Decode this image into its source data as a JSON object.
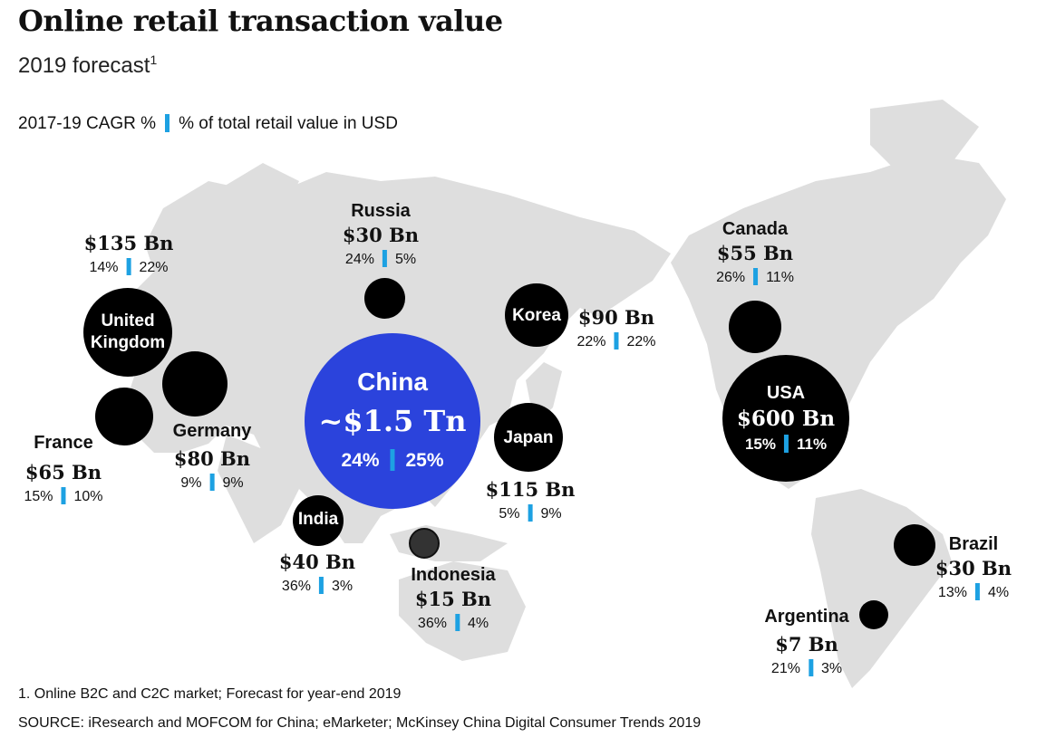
{
  "title": "Online retail transaction value",
  "subtitle": "2019 forecast",
  "subtitle_sup": "1",
  "legend": {
    "left": "2017-19 CAGR %",
    "right": "% of total retail value in USD"
  },
  "accent_color": "#1da1e2",
  "china_color": "#2b43dc",
  "countries": {
    "uk": {
      "name_line1": "United",
      "name_line2": "Kingdom",
      "value": "$135 Bn",
      "cagr": "14%",
      "share": "22%"
    },
    "france": {
      "name": "France",
      "value": "$65 Bn",
      "cagr": "15%",
      "share": "10%"
    },
    "germany": {
      "name": "Germany",
      "value": "$80 Bn",
      "cagr": "9%",
      "share": "9%"
    },
    "russia": {
      "name": "Russia",
      "value": "$30 Bn",
      "cagr": "24%",
      "share": "5%"
    },
    "china": {
      "name": "China",
      "value": "~$1.5 Tn",
      "cagr": "24%",
      "share": "25%"
    },
    "india": {
      "name": "India",
      "value": "$40 Bn",
      "cagr": "36%",
      "share": "3%"
    },
    "indonesia": {
      "name": "Indonesia",
      "value": "$15 Bn",
      "cagr": "36%",
      "share": "4%"
    },
    "korea": {
      "name": "Korea",
      "value": "$90 Bn",
      "cagr": "22%",
      "share": "22%"
    },
    "japan": {
      "name": "Japan",
      "value": "$115 Bn",
      "cagr": "5%",
      "share": "9%"
    },
    "canada": {
      "name": "Canada",
      "value": "$55 Bn",
      "cagr": "26%",
      "share": "11%"
    },
    "usa": {
      "name": "USA",
      "value": "$600 Bn",
      "cagr": "15%",
      "share": "11%"
    },
    "brazil": {
      "name": "Brazil",
      "value": "$30 Bn",
      "cagr": "13%",
      "share": "4%"
    },
    "argentina": {
      "name": "Argentina",
      "value": "$7 Bn",
      "cagr": "21%",
      "share": "3%"
    }
  },
  "footnote": "1. Online B2C and C2C market; Forecast for year-end 2019",
  "source": "SOURCE: iResearch and MOFCOM for China; eMarketer; McKinsey China Digital Consumer Trends 2019"
}
